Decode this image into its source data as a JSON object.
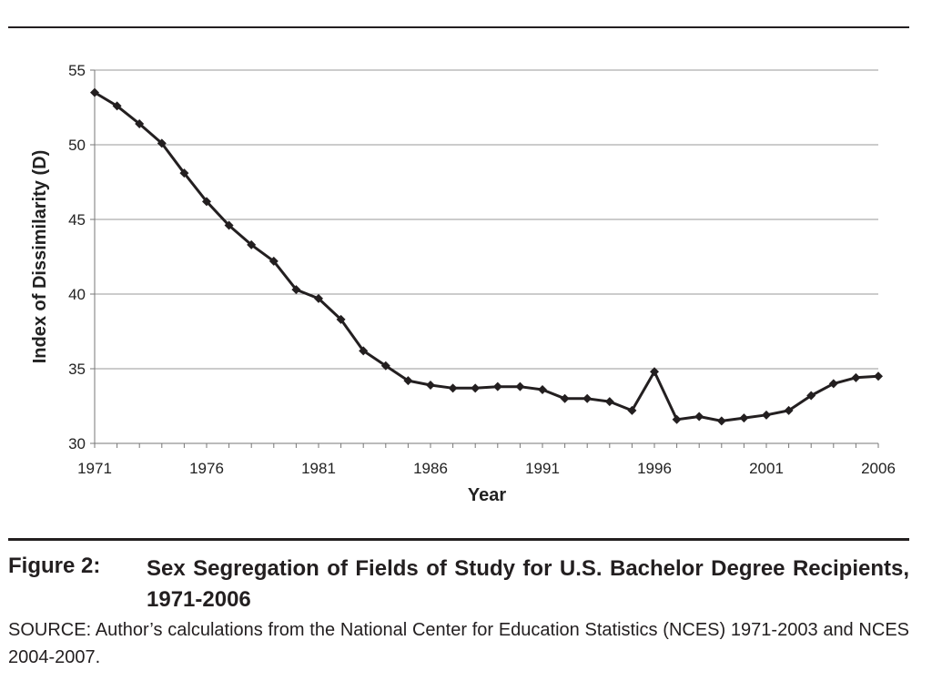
{
  "chart_data": {
    "type": "line",
    "xlabel": "Year",
    "ylabel": "Index of Dissimilarity (D)",
    "xlim": [
      1971,
      2006
    ],
    "ylim": [
      30,
      55
    ],
    "xticks": [
      "1971",
      "1976",
      "1981",
      "1986",
      "1991",
      "1996",
      "2001",
      "2006"
    ],
    "yticks": [
      "30",
      "35",
      "40",
      "45",
      "50",
      "55"
    ],
    "grid": "horizontal",
    "legend": "none",
    "series": [
      {
        "x": [
          1971,
          1972,
          1973,
          1974,
          1975,
          1976,
          1977,
          1978,
          1979,
          1980,
          1981,
          1982,
          1983,
          1984,
          1985,
          1986,
          1987,
          1988,
          1989,
          1990,
          1991,
          1992,
          1993,
          1994,
          1995,
          1996,
          1997,
          1998,
          1999,
          2000,
          2001,
          2002,
          2003,
          2004,
          2005,
          2006
        ],
        "values": [
          53.5,
          52.6,
          51.4,
          50.1,
          48.1,
          46.2,
          44.6,
          43.3,
          42.2,
          40.3,
          39.7,
          38.3,
          36.2,
          35.2,
          34.2,
          33.9,
          33.7,
          33.7,
          33.8,
          33.8,
          33.6,
          33.0,
          33.0,
          32.8,
          32.2,
          34.8,
          31.6,
          31.8,
          31.5,
          31.7,
          31.9,
          32.2,
          33.2,
          34.0,
          34.4,
          34.5
        ],
        "color": "#231f20"
      }
    ]
  },
  "caption": {
    "figure_label": "Figure 2:",
    "title": "Sex Segregation of Fields of Study for U.S. Bachelor Degree Recipients, 1971-2006",
    "source": "SOURCE: Author’s calculations from the National Center for Education Statistics (NCES) 1971-2003 and NCES 2004-2007."
  }
}
